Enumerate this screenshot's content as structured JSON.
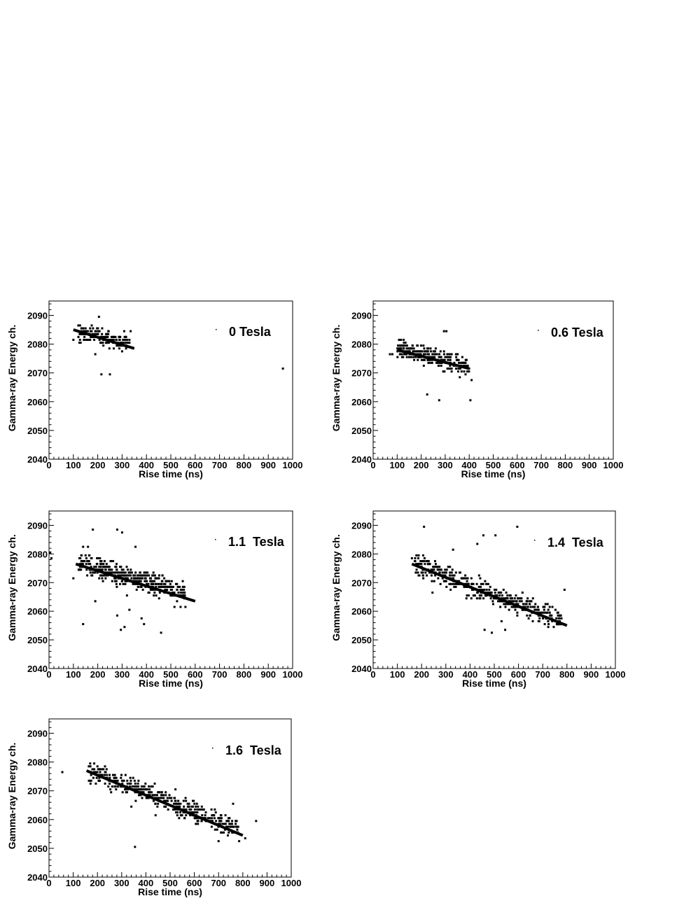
{
  "axes_common": {
    "xlabel": "Rise time (ns)",
    "ylabel": "Gamma-ray Energy ch.",
    "xlim": [
      0,
      1000
    ],
    "ylim": [
      2040,
      2095
    ],
    "x_ticks": [
      0,
      100,
      200,
      300,
      400,
      500,
      600,
      700,
      800,
      900,
      1000
    ],
    "y_ticks": [
      2040,
      2050,
      2060,
      2070,
      2080,
      2090
    ]
  },
  "chart_data": [
    {
      "type": "scatter",
      "label": "0 Tesla",
      "xlabel": "Rise time (ns)",
      "ylabel": "Gamma-ray Energy ch.",
      "xlim": [
        0,
        1000
      ],
      "ylim": [
        2040,
        2095
      ],
      "cloud": {
        "x_range": [
          120,
          330
        ],
        "y_center_at_x_min": 2083.5,
        "y_center_at_x_max": 2080,
        "y_spread": 3,
        "n": 160
      },
      "points": [
        [
          205,
          2089.5
        ],
        [
          215,
          2069.5
        ],
        [
          250,
          2069.5
        ],
        [
          960,
          2071.5
        ],
        [
          100,
          2081.5
        ],
        [
          335,
          2084.5
        ],
        [
          190,
          2076.5
        ],
        [
          300,
          2077.5
        ]
      ],
      "fit_line": [
        [
          100,
          2085
        ],
        [
          350,
          2078.5
        ]
      ]
    },
    {
      "type": "scatter",
      "label": "0.6 Tesla",
      "xlabel": "Rise time (ns)",
      "ylabel": "Gamma-ray Energy ch.",
      "xlim": [
        0,
        1000
      ],
      "ylim": [
        2040,
        2095
      ],
      "cloud": {
        "x_range": [
          100,
          400
        ],
        "y_center_at_x_min": 2078,
        "y_center_at_x_max": 2071.5,
        "y_spread": 3.5,
        "n": 230
      },
      "points": [
        [
          225,
          2062.5
        ],
        [
          275,
          2060.5
        ],
        [
          295,
          2084.5
        ],
        [
          305,
          2084.5
        ],
        [
          405,
          2060.5
        ],
        [
          70,
          2076.5
        ],
        [
          80,
          2076.5
        ],
        [
          410,
          2067.5
        ]
      ],
      "fit_line": [
        [
          100,
          2078
        ],
        [
          400,
          2071.5
        ]
      ]
    },
    {
      "type": "scatter",
      "label": "1.1  Tesla",
      "xlabel": "Rise time (ns)",
      "ylabel": "Gamma-ray Energy ch.",
      "xlim": [
        0,
        1000
      ],
      "ylim": [
        2040,
        2095
      ],
      "cloud": {
        "x_range": [
          120,
          560
        ],
        "y_center_at_x_min": 2076.5,
        "y_center_at_x_max": 2066,
        "y_spread": 3.5,
        "n": 420
      },
      "points": [
        [
          180,
          2088.5
        ],
        [
          280,
          2088.5
        ],
        [
          300,
          2087.5
        ],
        [
          140,
          2055.5
        ],
        [
          295,
          2053.5
        ],
        [
          310,
          2054.5
        ],
        [
          330,
          2060.5
        ],
        [
          390,
          2055.5
        ],
        [
          460,
          2052.5
        ],
        [
          100,
          2071.5
        ],
        [
          5,
          2080.5
        ],
        [
          10,
          2078.5
        ],
        [
          355,
          2082.5
        ],
        [
          140,
          2082.5
        ],
        [
          160,
          2082.5
        ],
        [
          280,
          2058.5
        ],
        [
          380,
          2057.5
        ],
        [
          560,
          2061.5
        ],
        [
          540,
          2061.5
        ],
        [
          515,
          2061.5
        ],
        [
          190,
          2063.5
        ],
        [
          320,
          2065.5
        ]
      ],
      "fit_line": [
        [
          110,
          2076.5
        ],
        [
          600,
          2063.5
        ]
      ]
    },
    {
      "type": "scatter",
      "label": "1.4  Tesla",
      "xlabel": "Rise time (ns)",
      "ylabel": "Gamma-ray Energy ch.",
      "xlim": [
        0,
        1000
      ],
      "ylim": [
        2040,
        2095
      ],
      "cloud": {
        "x_range": [
          170,
          780
        ],
        "y_center_at_x_min": 2076,
        "y_center_at_x_max": 2056,
        "y_spread": 3.5,
        "n": 430
      },
      "points": [
        [
          210,
          2089.5
        ],
        [
          595,
          2089.5
        ],
        [
          455,
          2086.5
        ],
        [
          505,
          2086.5
        ],
        [
          430,
          2083.5
        ],
        [
          460,
          2053.5
        ],
        [
          490,
          2052.5
        ],
        [
          545,
          2053.5
        ],
        [
          530,
          2056.5
        ],
        [
          790,
          2067.5
        ],
        [
          160,
          2078.5
        ],
        [
          330,
          2081.5
        ],
        [
          775,
          2055.5
        ],
        [
          245,
          2066.5
        ],
        [
          385,
          2064.5
        ]
      ],
      "fit_line": [
        [
          160,
          2076.5
        ],
        [
          800,
          2055
        ]
      ]
    },
    {
      "type": "scatter",
      "label": "1.6  Tesla",
      "xlabel": "Rise time (ns)",
      "ylabel": "Gamma-ray Energy ch.",
      "xlim": [
        0,
        1000
      ],
      "ylim": [
        2040,
        2095
      ],
      "cloud": {
        "x_range": [
          160,
          790
        ],
        "y_center_at_x_min": 2076.5,
        "y_center_at_x_max": 2056,
        "y_spread": 3.5,
        "n": 400
      },
      "points": [
        [
          55,
          2076.5
        ],
        [
          355,
          2050.5
        ],
        [
          810,
          2053.5
        ],
        [
          855,
          2059.5
        ],
        [
          760,
          2065.5
        ],
        [
          700,
          2052.5
        ],
        [
          785,
          2052.5
        ],
        [
          340,
          2064.5
        ],
        [
          440,
          2061.5
        ],
        [
          170,
          2079.5
        ]
      ],
      "fit_line": [
        [
          155,
          2077
        ],
        [
          800,
          2054.5
        ]
      ]
    }
  ]
}
